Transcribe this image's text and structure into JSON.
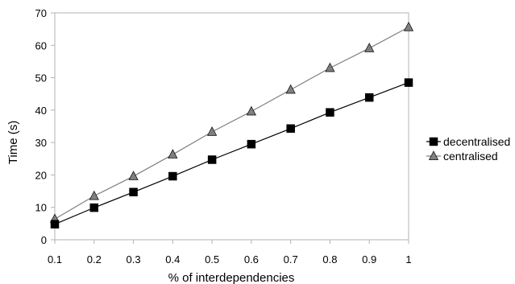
{
  "chart_data": {
    "type": "line",
    "title": "",
    "xlabel": "% of interdependencies",
    "ylabel": "Time (s)",
    "x": [
      0.1,
      0.2,
      0.3,
      0.4,
      0.5,
      0.6,
      0.7,
      0.8,
      0.9,
      1
    ],
    "x_tick_labels": [
      "0.1",
      "0.2",
      "0.3",
      "0.4",
      "0.5",
      "0.6",
      "0.7",
      "0.8",
      "0.9",
      "1"
    ],
    "xlim": [
      0.1,
      1
    ],
    "ylim": [
      0,
      70
    ],
    "y_ticks": [
      0,
      10,
      20,
      30,
      40,
      50,
      60,
      70
    ],
    "y_tick_labels": [
      "0",
      "10",
      "20",
      "30",
      "40",
      "50",
      "60",
      "70"
    ],
    "grid": false,
    "legend_position": "right",
    "series": [
      {
        "name": "decentralised",
        "marker": "square",
        "color": "#000000",
        "line_color": "#000000",
        "values": [
          4.8,
          9.9,
          14.7,
          19.6,
          24.7,
          29.5,
          34.3,
          39.3,
          43.9,
          48.5
        ]
      },
      {
        "name": "centralised",
        "marker": "triangle",
        "color": "#808080",
        "line_color": "#808080",
        "values": [
          6.4,
          13.5,
          19.6,
          26.3,
          33.3,
          39.6,
          46.3,
          53.0,
          59.1,
          65.6
        ]
      }
    ]
  }
}
